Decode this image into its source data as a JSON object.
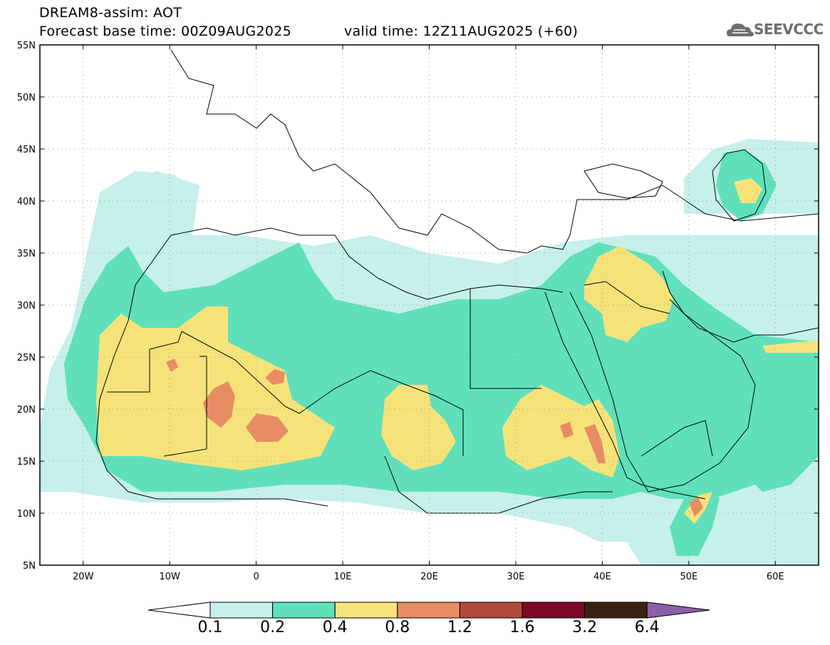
{
  "header": {
    "line1": "DREAM8-assim: AOT",
    "line2": "Forecast base time: 00Z09AUG2025",
    "line3": "valid time: 12Z11AUG2025 (+60)"
  },
  "logo": {
    "text": "SEEVCCC",
    "icon": "cloud-icon"
  },
  "map": {
    "lat_labels": [
      "55N",
      "50N",
      "45N",
      "40N",
      "35N",
      "30N",
      "25N",
      "20N",
      "15N",
      "10N",
      "5N"
    ],
    "lon_labels": [
      "20W",
      "10W",
      "0",
      "10E",
      "20E",
      "30E",
      "40E",
      "50E",
      "60E"
    ],
    "extent": {
      "lon_min": -25,
      "lon_max": 65,
      "lat_min": 5,
      "lat_max": 55
    }
  },
  "colorbar": {
    "labels": [
      "0.1",
      "0.2",
      "0.4",
      "0.8",
      "1.2",
      "1.6",
      "3.2",
      "6.4"
    ],
    "colors": [
      "#ffffff",
      "#c6f0ea",
      "#5fe0bb",
      "#f5e37a",
      "#e88c64",
      "#b04a3b",
      "#7a0a25",
      "#3a2212",
      "#8a5fa8"
    ]
  },
  "levels_colors": {
    "0.1-0.2": "#c6f0ea",
    "0.2-0.4": "#5fe0bb",
    "0.4-0.8": "#f5e37a",
    "0.8-1.2": "#e88c64",
    "1.2-1.6": "#b04a3b"
  }
}
